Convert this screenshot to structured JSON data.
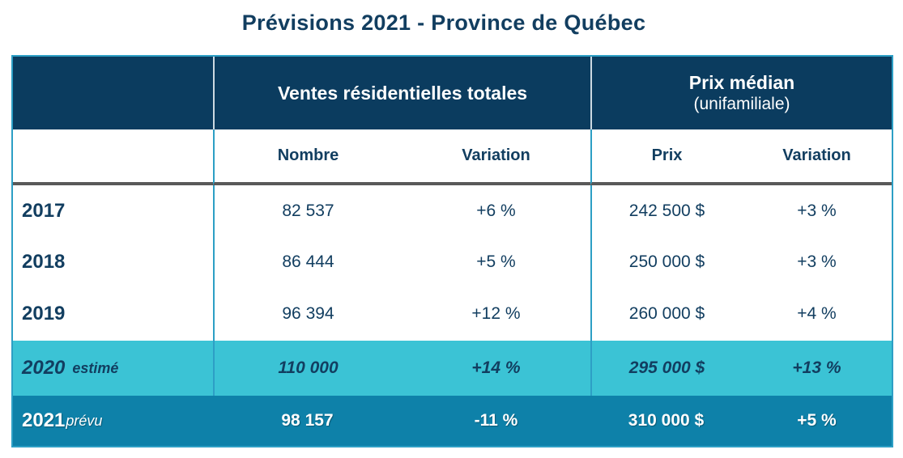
{
  "title": "Prévisions 2021 - Province de Québec",
  "colors": {
    "header_bg": "#0b3c5f",
    "text_navy": "#123e60",
    "estimate_bg": "#3bc3d5",
    "forecast_bg": "#0e81a9",
    "border_blue": "#2d9fc5",
    "divider_gray": "#595959"
  },
  "table": {
    "header": {
      "ventes_title": "Ventes résidentielles totales",
      "prix_title": "Prix médian",
      "prix_subtitle": "(unifamiliale)"
    },
    "subheader": {
      "nombre": "Nombre",
      "variation1": "Variation",
      "prix": "Prix",
      "variation2": "Variation"
    },
    "rows": [
      {
        "year": "2017",
        "suffix": "",
        "nombre": "82 537",
        "nombre_var": "+6 %",
        "prix": "242 500 $",
        "prix_var": "+3 %"
      },
      {
        "year": "2018",
        "suffix": "",
        "nombre": "86 444",
        "nombre_var": "+5 %",
        "prix": "250 000 $",
        "prix_var": "+3 %"
      },
      {
        "year": "2019",
        "suffix": "",
        "nombre": "96 394",
        "nombre_var": "+12 %",
        "prix": "260 000 $",
        "prix_var": "+4 %"
      },
      {
        "year": "2020",
        "suffix": "estimé",
        "nombre": "110 000",
        "nombre_var": "+14 %",
        "prix": "295 000 $",
        "prix_var": "+13 %"
      },
      {
        "year": "2021",
        "suffix": "prévu",
        "nombre": "98 157",
        "nombre_var": "-11 %",
        "prix": "310 000 $",
        "prix_var": "+5 %"
      }
    ]
  },
  "chart_data": {
    "type": "table",
    "title": "Prévisions 2021 - Province de Québec",
    "column_groups": [
      "Ventes résidentielles totales",
      "Prix médian (unifamiliale)"
    ],
    "columns": [
      "Nombre",
      "Variation",
      "Prix",
      "Variation"
    ],
    "rows": [
      [
        "2017",
        "82 537",
        "+6 %",
        "242 500 $",
        "+3 %"
      ],
      [
        "2018",
        "86 444",
        "+5 %",
        "250 000 $",
        "+3 %"
      ],
      [
        "2019",
        "96 394",
        "+12 %",
        "260 000 $",
        "+4 %"
      ],
      [
        "2020 estimé",
        "110 000",
        "+14 %",
        "295 000 $",
        "+13 %"
      ],
      [
        "2021 prévu",
        "98 157",
        "-11 %",
        "310 000 $",
        "+5 %"
      ]
    ],
    "notes": {
      "row_highlights": {
        "2020 estimé": "cyan background, italic (estimated values)",
        "2021 prévu": "teal background, white bold (forecast values)"
      }
    }
  }
}
